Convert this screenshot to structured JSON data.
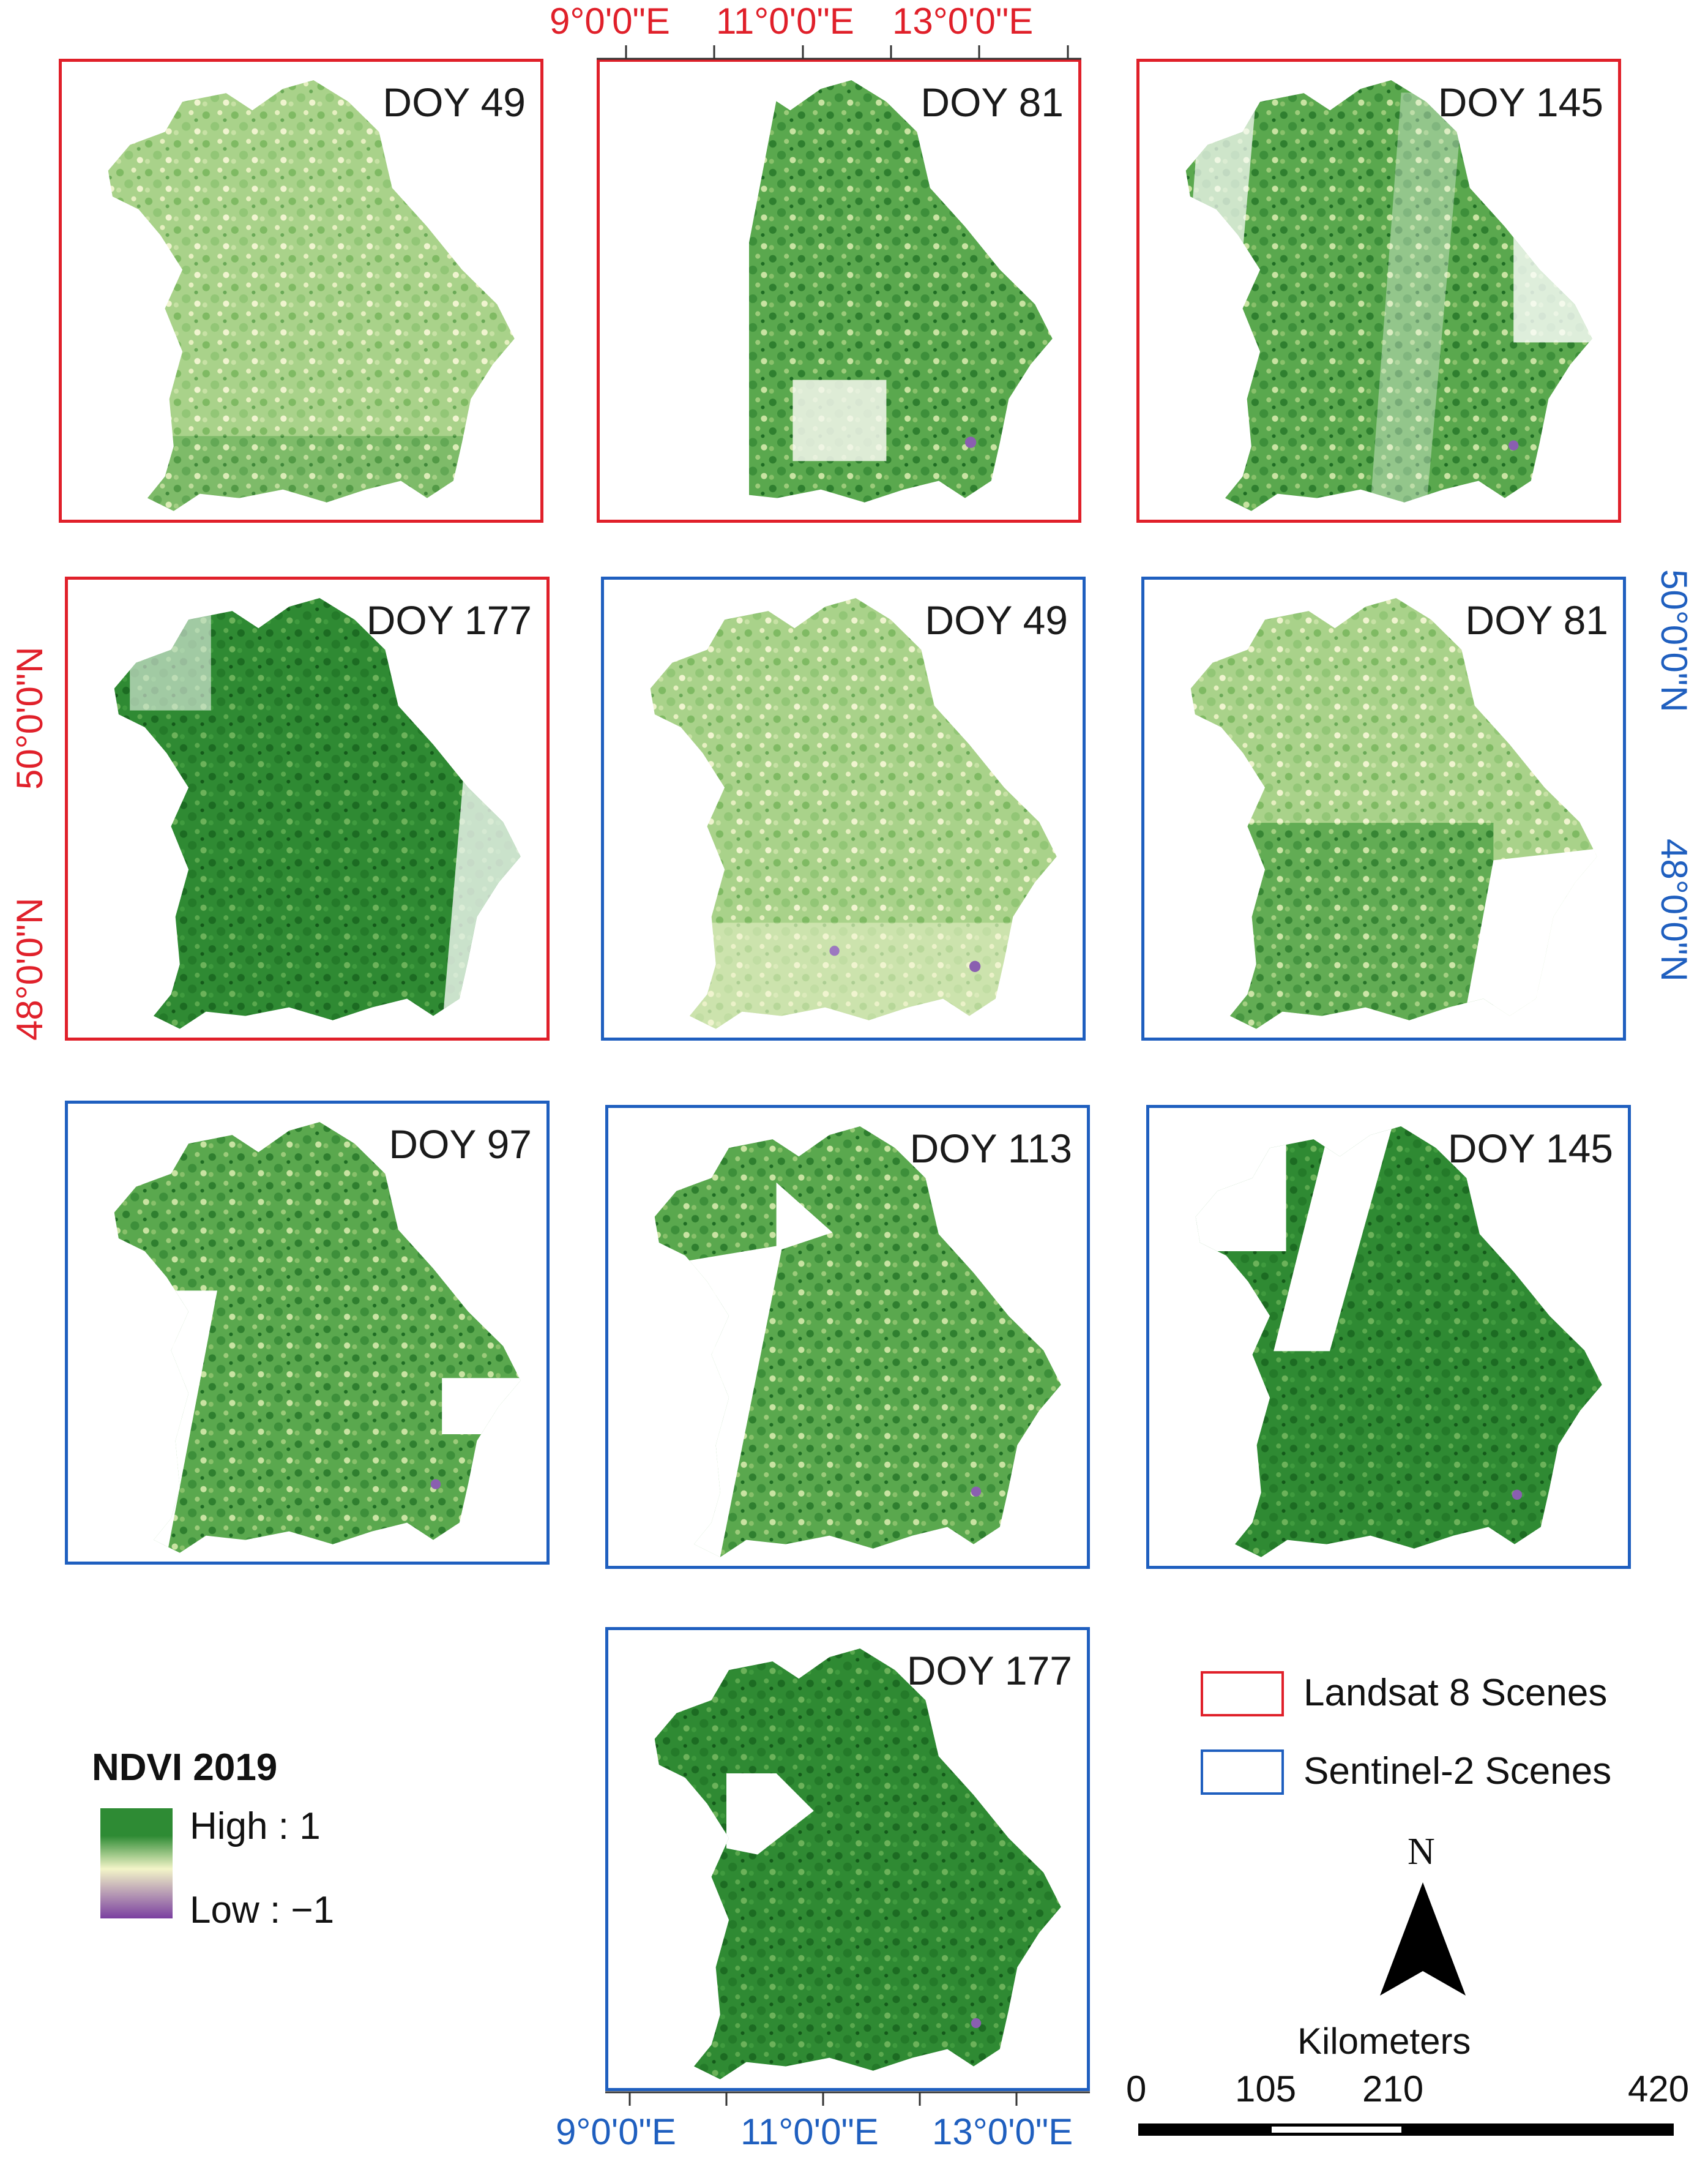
{
  "colors": {
    "landsat": "#e0202a",
    "sentinel": "#1f5fbf",
    "ndvi_high": "#2e8b34",
    "ndvi_mid": "#f3f5c8",
    "ndvi_low": "#7a3fa0"
  },
  "panels": [
    {
      "label": "DOY 49",
      "sensor": "landsat"
    },
    {
      "label": "DOY 81",
      "sensor": "landsat"
    },
    {
      "label": "DOY 145",
      "sensor": "landsat"
    },
    {
      "label": "DOY 177",
      "sensor": "landsat"
    },
    {
      "label": "DOY 49",
      "sensor": "sentinel"
    },
    {
      "label": "DOY 81",
      "sensor": "sentinel"
    },
    {
      "label": "DOY 97",
      "sensor": "sentinel"
    },
    {
      "label": "DOY 113",
      "sensor": "sentinel"
    },
    {
      "label": "DOY 145",
      "sensor": "sentinel"
    },
    {
      "label": "DOY 177",
      "sensor": "sentinel"
    }
  ],
  "axes": {
    "top_lon": [
      "9°0'0\"E",
      "11°0'0\"E",
      "13°0'0\"E"
    ],
    "bottom_lon": [
      "9°0'0\"E",
      "11°0'0\"E",
      "13°0'0\"E"
    ],
    "left_lat": [
      "50°0'0\"N",
      "48°0'0\"N"
    ],
    "right_lat": [
      "50°0'0\"N",
      "48°0'0\"N"
    ]
  },
  "legend": {
    "title": "NDVI 2019",
    "high": "High :  1",
    "low": "Low : −1",
    "landsat_label": "Landsat 8 Scenes",
    "sentinel_label": "Sentinel-2 Scenes"
  },
  "north_arrow": {
    "label": "N"
  },
  "scale_bar": {
    "unit": "Kilometers",
    "ticks": [
      "0",
      "105",
      "210",
      "420"
    ]
  }
}
